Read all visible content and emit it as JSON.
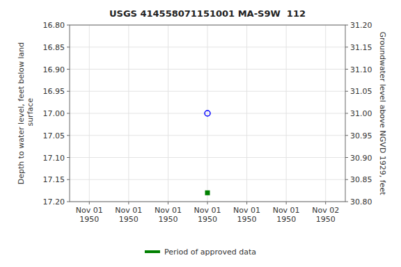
{
  "chart_data": {
    "type": "scatter",
    "title": "USGS 414558071151001 MA-S9W  112",
    "ylabel": "Depth to water level, feet below land\n surface",
    "y2label": "Groundwater level above NGVD 1929, feet",
    "categories": [
      "Nov 01\n1950",
      "Nov 01\n1950",
      "Nov 01\n1950",
      "Nov 01\n1950",
      "Nov 01\n1950",
      "Nov 01\n1950",
      "Nov 02\n1950"
    ],
    "series": [
      {
        "color": "#0000ff",
        "marker": "circle",
        "values": [
          null,
          null,
          null,
          17.0,
          null,
          null,
          null
        ]
      },
      {
        "name": "Period of approved data",
        "color": "#008000",
        "marker": "square",
        "values": [
          null,
          null,
          null,
          17.18,
          null,
          null,
          null
        ]
      }
    ],
    "ylim": [
      17.2,
      16.8
    ],
    "yticks": [
      {
        "value": 16.8,
        "label": "16.80"
      },
      16.85,
      {
        "value": 16.9,
        "label": "16.90"
      },
      16.95,
      {
        "value": 17.0,
        "label": "17.00"
      },
      17.05,
      {
        "value": 17.1,
        "label": "17.10"
      },
      17.15,
      {
        "value": 17.2,
        "label": "17.20"
      }
    ],
    "y2lim": [
      30.8,
      31.2
    ],
    "y2ticks": [
      {
        "value": 30.8,
        "label": "30.80"
      },
      30.85,
      {
        "value": 30.9,
        "label": "30.90"
      },
      30.95,
      {
        "value": 31.0,
        "label": "31.00"
      },
      31.05,
      {
        "value": 31.1,
        "label": "31.10"
      },
      31.15,
      {
        "value": 31.2,
        "label": "31.20"
      }
    ],
    "grid": true
  }
}
